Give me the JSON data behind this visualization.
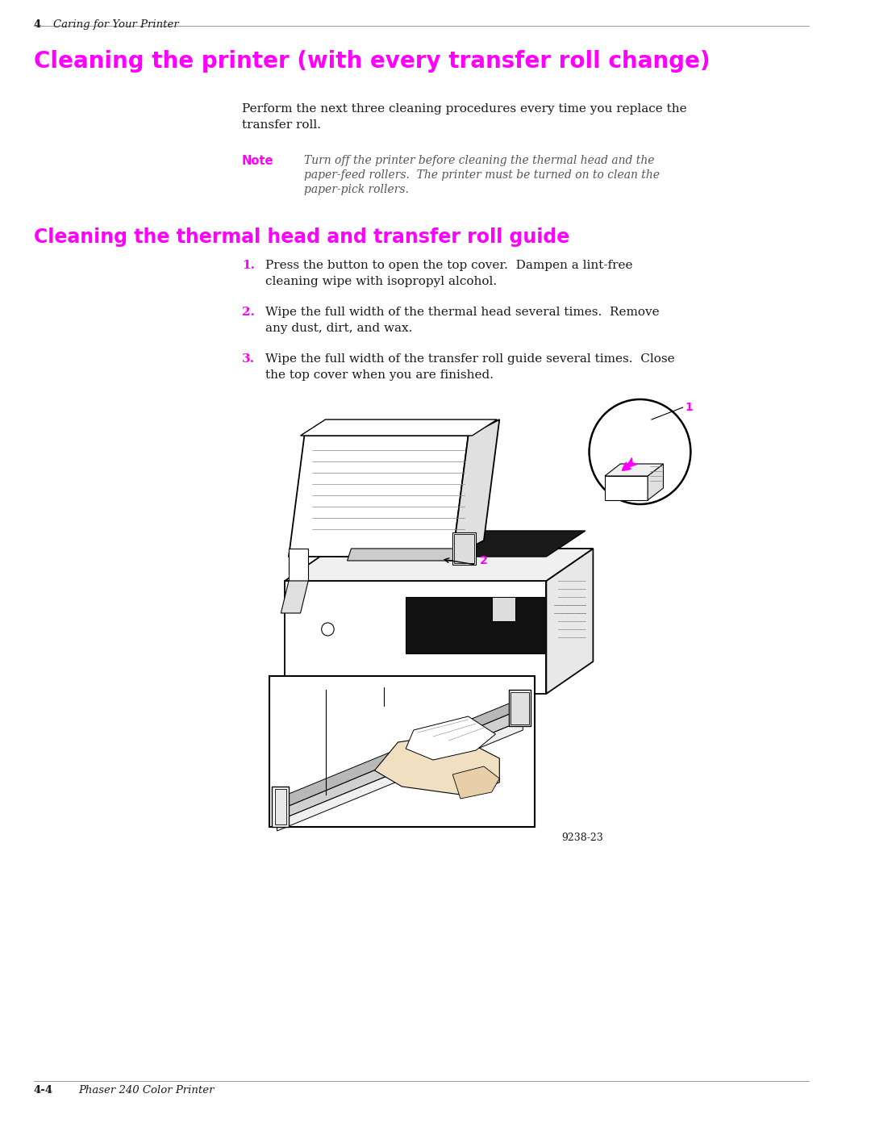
{
  "bg_color": "#ffffff",
  "magenta": "#ff00ff",
  "dark_text": "#1a1a1a",
  "gray_text": "#555555",
  "header_number": "4",
  "header_text": "Caring for Your Printer",
  "title1": "Cleaning the printer (with every transfer roll change)",
  "title1_fontsize": 20,
  "body_indent": 0.29,
  "para1_line1": "Perform the next three cleaning procedures every time you replace the",
  "para1_line2": "transfer roll.",
  "note_label": "Note",
  "note_text_line1": "Turn off the printer before cleaning the thermal head and the",
  "note_text_line2": "paper-feed rollers.  The printer must be turned on to clean the",
  "note_text_line3": "paper-pick rollers.",
  "title2": "Cleaning the thermal head and transfer roll guide",
  "title2_fontsize": 17,
  "step1_line1": "Press the button to open the top cover.  Dampen a lint-free",
  "step1_line2": "cleaning wipe with isopropyl alcohol.",
  "step2_line1": "Wipe the full width of the thermal head several times.  Remove",
  "step2_line2": "any dust, dirt, and wax.",
  "step3_line1": "Wipe the full width of the transfer roll guide several times.  Close",
  "step3_line2": "the top cover when you are finished.",
  "footer_number": "4-4",
  "footer_text": "Phaser 240 Color Printer",
  "figure_caption": "9238-23"
}
